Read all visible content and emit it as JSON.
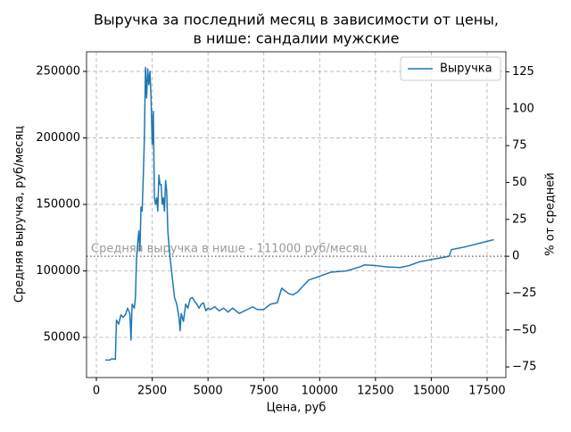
{
  "chart_data": {
    "type": "line",
    "title": [
      "Выручка за последний месяц в зависимости от цены,",
      "в нише: сандалии мужские"
    ],
    "x_label": "Цена, руб",
    "y_label": "Средняя выручка, руб/месяц",
    "y2_label": "% от средней",
    "annotation": "Средняя выручка в нише - 111000 руб/месяц",
    "average_line": 111000,
    "x": [
      400,
      600,
      700,
      850,
      900,
      1000,
      1100,
      1200,
      1300,
      1400,
      1500,
      1550,
      1600,
      1700,
      1750,
      1800,
      1850,
      1900,
      1950,
      2000,
      2050,
      2100,
      2150,
      2200,
      2250,
      2300,
      2350,
      2400,
      2450,
      2500,
      2550,
      2600,
      2650,
      2700,
      2750,
      2800,
      2850,
      2900,
      2950,
      3000,
      3050,
      3100,
      3150,
      3200,
      3300,
      3400,
      3500,
      3600,
      3700,
      3750,
      3800,
      3900,
      4000,
      4100,
      4200,
      4300,
      4400,
      4500,
      4600,
      4700,
      4800,
      4900,
      5000,
      5100,
      5300,
      5500,
      5700,
      5900,
      6100,
      6400,
      7000,
      7200,
      7500,
      7800,
      8100,
      8300,
      8600,
      8800,
      9000,
      9500,
      10000,
      10500,
      11200,
      11800,
      12000,
      12500,
      13000,
      13600,
      14000,
      14500,
      15800,
      15900,
      16500,
      17800
    ],
    "series": [
      {
        "name": "Выручка",
        "color": "#1f77b4",
        "values": [
          33000,
          33000,
          34000,
          33500,
          63000,
          60000,
          67000,
          65000,
          67000,
          72000,
          68000,
          48000,
          75000,
          72000,
          80000,
          110000,
          120000,
          130000,
          115000,
          148000,
          145000,
          170000,
          200000,
          253000,
          230000,
          252000,
          240000,
          250000,
          230000,
          195000,
          220000,
          155000,
          150000,
          155000,
          145000,
          172000,
          165000,
          165000,
          150000,
          155000,
          145000,
          168000,
          160000,
          130000,
          110000,
          95000,
          80000,
          75000,
          65000,
          55000,
          68000,
          62000,
          75000,
          72000,
          79000,
          80000,
          77000,
          75000,
          72000,
          75000,
          76000,
          70000,
          72000,
          71000,
          73000,
          70000,
          72000,
          69000,
          72000,
          68000,
          73000,
          71000,
          71000,
          75000,
          76000,
          87000,
          83000,
          82000,
          84000,
          93000,
          96000,
          99000,
          100000,
          103000,
          104500,
          104000,
          103000,
          102500,
          104000,
          107000,
          111000,
          116000,
          118000,
          123500
        ]
      }
    ],
    "xlim": [
      -440,
      18340
    ],
    "xticks": [
      0,
      2500,
      5000,
      7500,
      10000,
      12500,
      15000,
      17500
    ],
    "ylim": [
      19800,
      264800
    ],
    "yticks": [
      50000,
      100000,
      150000,
      200000,
      250000
    ],
    "y2lim": [
      -82.2,
      138.6
    ],
    "y2ticks": [
      {
        "value": -75,
        "label": "−75"
      },
      {
        "value": -50,
        "label": "−50"
      },
      {
        "value": -25,
        "label": "−25"
      },
      0,
      25,
      50,
      75,
      100,
      125
    ],
    "grid": true,
    "legend": "upper right"
  }
}
